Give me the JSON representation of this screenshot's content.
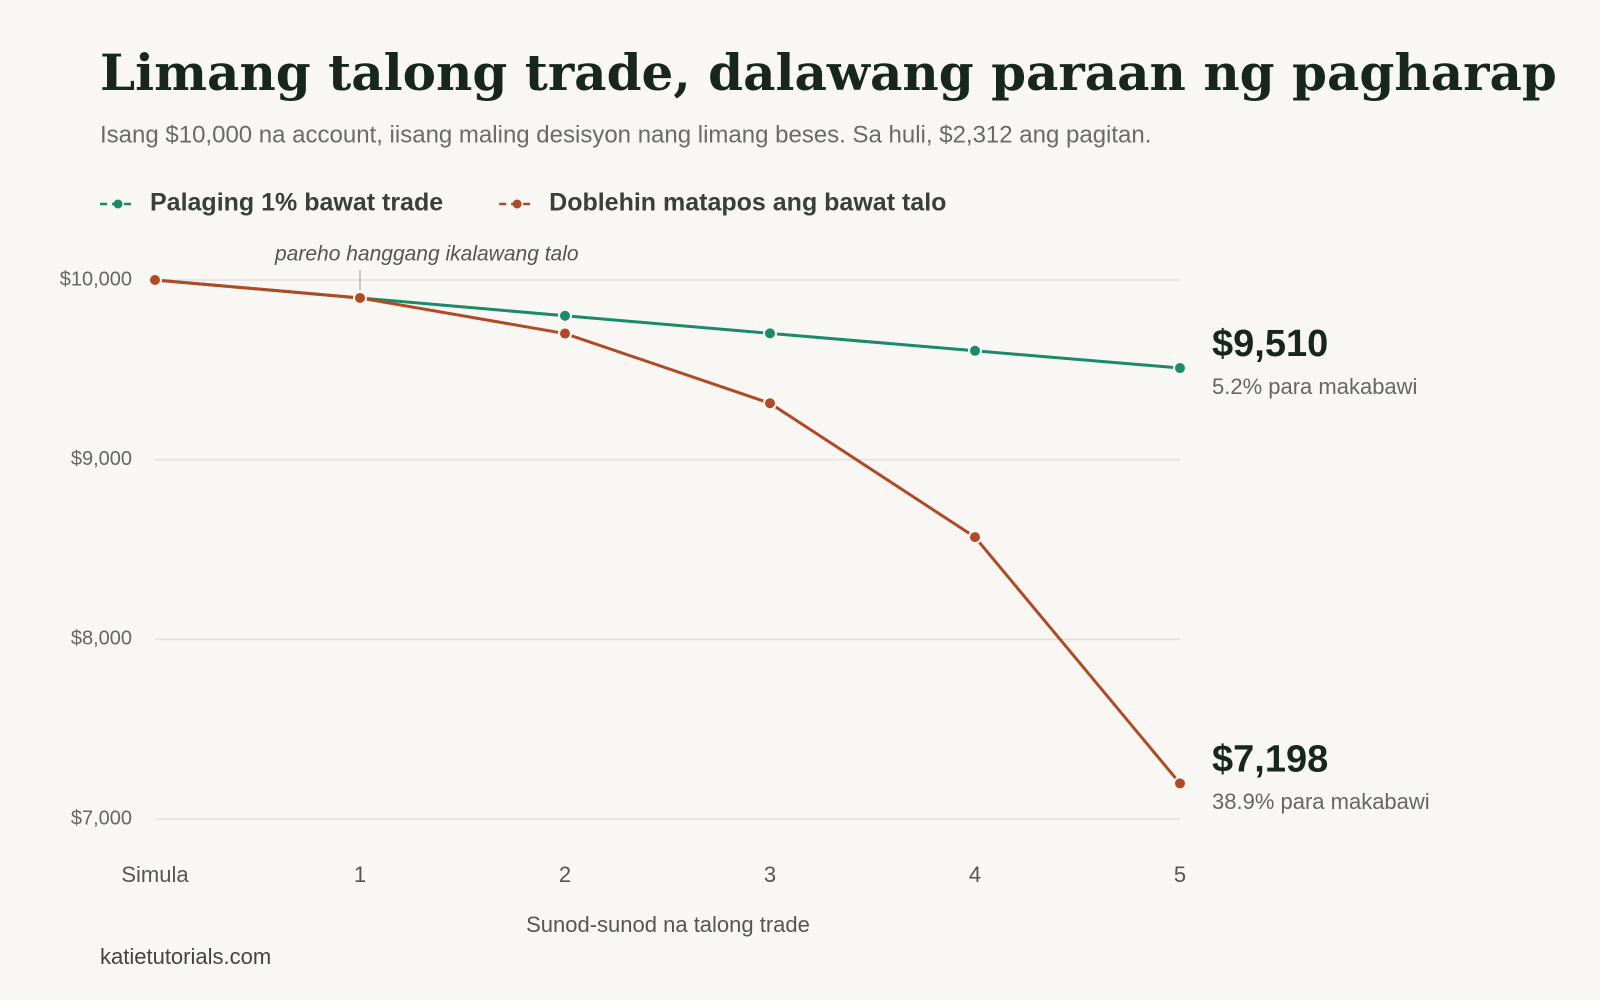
{
  "chart_data": {
    "type": "line",
    "title": "Limang talong trade, dalawang paraan ng pagharap",
    "subtitle": "Isang $10,000 na account, iisang maling desisyon nang limang beses. Sa huli, $2,312 ang pagitan.",
    "x_label": "Sunod-sunod na talong trade",
    "source": "katietutorials.com",
    "annotation": "pareho hanggang ikalawang talo",
    "categories": [
      "Simula",
      "1",
      "2",
      "3",
      "4",
      "5"
    ],
    "series": [
      {
        "name": "Palaging 1% bawat trade",
        "color": "#1a8a68",
        "values": [
          10000,
          9900,
          9801,
          9703,
          9606,
          9510
        ],
        "value_labels": [
          null,
          null,
          null,
          null,
          null,
          "$9,510"
        ],
        "note": "5.2% para makabawi"
      },
      {
        "name": "Doblehin matapos ang bawat talo",
        "color": "#b04a26",
        "values": [
          10000,
          9900,
          9702,
          9314,
          8569,
          7198
        ],
        "value_labels": [
          null,
          null,
          null,
          null,
          null,
          "$7,198"
        ],
        "note": "38.9% para makabawi"
      }
    ],
    "ylim": [
      7000,
      10000
    ],
    "yticks": [
      {
        "value": 7000,
        "label": "$7,000"
      },
      {
        "value": 8000,
        "label": "$8,000"
      },
      {
        "value": 9000,
        "label": "$9,000"
      },
      {
        "value": 10000,
        "label": "$10,000"
      }
    ],
    "grid": true
  }
}
